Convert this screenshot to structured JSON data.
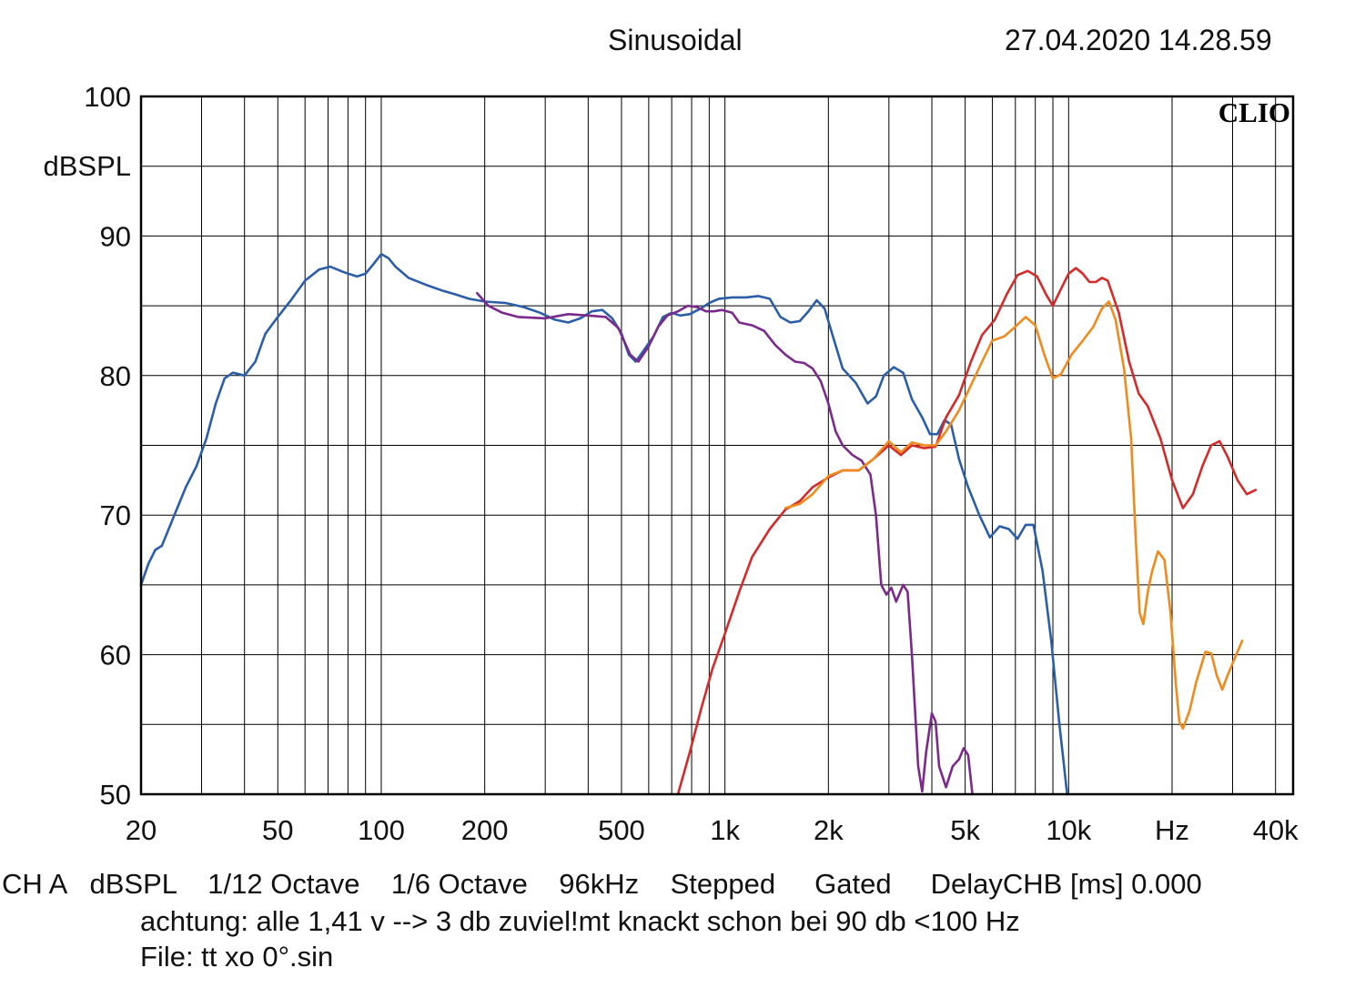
{
  "header": {
    "title": "Sinusoidal",
    "timestamp": "27.04.2020 14.28.59"
  },
  "footer": {
    "settings": "CH A   dBSPL    1/12 Octave    1/6 Octave    96kHz    Stepped     Gated     DelayCHB [ms] 0.000",
    "note": "achtung: alle 1,41 v --> 3 db zuviel!mt knackt schon bei 90 db <100 Hz",
    "file": "File: tt xo 0°.sin"
  },
  "chart_data": {
    "type": "line",
    "title": "Sinusoidal",
    "logo": "CLIO",
    "ylabel": "dBSPL",
    "xlabel": "Hz",
    "x_scale": "log",
    "xlim": [
      20,
      45000
    ],
    "ylim": [
      50,
      100
    ],
    "grid": true,
    "y_ticks": [
      {
        "value": 100,
        "label": "100"
      },
      {
        "value": 90,
        "label": "90"
      },
      {
        "value": 80,
        "label": "80"
      },
      {
        "value": 70,
        "label": "70"
      },
      {
        "value": 60,
        "label": "60"
      },
      {
        "value": 50,
        "label": "50"
      }
    ],
    "x_ticks": [
      {
        "value": 20,
        "label": "20"
      },
      {
        "value": 50,
        "label": "50"
      },
      {
        "value": 100,
        "label": "100"
      },
      {
        "value": 200,
        "label": "200"
      },
      {
        "value": 500,
        "label": "500"
      },
      {
        "value": 1000,
        "label": "1k"
      },
      {
        "value": 2000,
        "label": "2k"
      },
      {
        "value": 5000,
        "label": "5k"
      },
      {
        "value": 10000,
        "label": "10k"
      },
      {
        "value": 40000,
        "label": "40k"
      }
    ],
    "series": [
      {
        "color": "#2b5ea8",
        "points": [
          [
            20,
            65
          ],
          [
            21,
            66.5
          ],
          [
            22,
            67.5
          ],
          [
            23,
            67.8
          ],
          [
            25,
            70
          ],
          [
            27,
            72
          ],
          [
            29,
            73.5
          ],
          [
            31,
            75.5
          ],
          [
            33,
            78
          ],
          [
            35,
            79.8
          ],
          [
            37,
            80.2
          ],
          [
            40,
            80
          ],
          [
            43,
            81
          ],
          [
            46,
            83
          ],
          [
            50,
            84.2
          ],
          [
            55,
            85.5
          ],
          [
            60,
            86.8
          ],
          [
            66,
            87.6
          ],
          [
            71,
            87.8
          ],
          [
            78,
            87.4
          ],
          [
            85,
            87.1
          ],
          [
            90,
            87.3
          ],
          [
            95,
            88
          ],
          [
            100,
            88.7
          ],
          [
            105,
            88.4
          ],
          [
            110,
            87.8
          ],
          [
            120,
            87
          ],
          [
            135,
            86.5
          ],
          [
            150,
            86.1
          ],
          [
            165,
            85.8
          ],
          [
            180,
            85.5
          ],
          [
            200,
            85.3
          ],
          [
            230,
            85.2
          ],
          [
            260,
            84.9
          ],
          [
            290,
            84.5
          ],
          [
            320,
            84
          ],
          [
            350,
            83.8
          ],
          [
            380,
            84.1
          ],
          [
            410,
            84.6
          ],
          [
            440,
            84.7
          ],
          [
            470,
            84.1
          ],
          [
            500,
            83
          ],
          [
            525,
            81.5
          ],
          [
            550,
            81
          ],
          [
            580,
            81.8
          ],
          [
            620,
            82.8
          ],
          [
            660,
            84.2
          ],
          [
            700,
            84.5
          ],
          [
            740,
            84.3
          ],
          [
            790,
            84.4
          ],
          [
            850,
            84.8
          ],
          [
            900,
            85.2
          ],
          [
            960,
            85.5
          ],
          [
            1050,
            85.6
          ],
          [
            1150,
            85.6
          ],
          [
            1250,
            85.7
          ],
          [
            1350,
            85.5
          ],
          [
            1450,
            84.2
          ],
          [
            1550,
            83.8
          ],
          [
            1650,
            83.9
          ],
          [
            1750,
            84.6
          ],
          [
            1850,
            85.4
          ],
          [
            1950,
            84.8
          ],
          [
            2050,
            83
          ],
          [
            2200,
            80.5
          ],
          [
            2400,
            79.5
          ],
          [
            2600,
            78
          ],
          [
            2750,
            78.5
          ],
          [
            2900,
            80
          ],
          [
            3100,
            80.6
          ],
          [
            3300,
            80.2
          ],
          [
            3500,
            78.3
          ],
          [
            3750,
            77
          ],
          [
            3950,
            75.8
          ],
          [
            4150,
            75.8
          ],
          [
            4350,
            76.8
          ],
          [
            4550,
            76.5
          ],
          [
            4800,
            74
          ],
          [
            5100,
            72
          ],
          [
            5500,
            70
          ],
          [
            5900,
            68.4
          ],
          [
            6300,
            69.2
          ],
          [
            6700,
            69
          ],
          [
            7100,
            68.3
          ],
          [
            7500,
            69.3
          ],
          [
            7900,
            69.3
          ],
          [
            8400,
            66
          ],
          [
            8900,
            61
          ],
          [
            9400,
            55
          ],
          [
            9900,
            50
          ]
        ]
      },
      {
        "color": "#7b2a8c",
        "points": [
          [
            190,
            85.9
          ],
          [
            205,
            85
          ],
          [
            225,
            84.5
          ],
          [
            250,
            84.2
          ],
          [
            300,
            84.1
          ],
          [
            350,
            84.4
          ],
          [
            400,
            84.3
          ],
          [
            450,
            84.2
          ],
          [
            490,
            83.4
          ],
          [
            530,
            81.5
          ],
          [
            560,
            81
          ],
          [
            600,
            82.1
          ],
          [
            640,
            83.5
          ],
          [
            680,
            84.3
          ],
          [
            730,
            84.6
          ],
          [
            780,
            85
          ],
          [
            830,
            84.9
          ],
          [
            880,
            84.6
          ],
          [
            930,
            84.6
          ],
          [
            980,
            84.7
          ],
          [
            1050,
            84.5
          ],
          [
            1100,
            83.8
          ],
          [
            1200,
            83.6
          ],
          [
            1300,
            83.2
          ],
          [
            1400,
            82.2
          ],
          [
            1500,
            81.5
          ],
          [
            1600,
            81
          ],
          [
            1700,
            80.9
          ],
          [
            1800,
            80.5
          ],
          [
            1900,
            79.6
          ],
          [
            2000,
            78
          ],
          [
            2100,
            76
          ],
          [
            2200,
            75
          ],
          [
            2350,
            74.3
          ],
          [
            2500,
            73.9
          ],
          [
            2650,
            72.9
          ],
          [
            2750,
            70
          ],
          [
            2850,
            65
          ],
          [
            2950,
            64.3
          ],
          [
            3050,
            64.8
          ],
          [
            3150,
            63.8
          ],
          [
            3300,
            65
          ],
          [
            3400,
            64.5
          ],
          [
            3500,
            60
          ],
          [
            3650,
            52
          ],
          [
            3750,
            50.2
          ],
          [
            3850,
            53
          ],
          [
            4000,
            55.8
          ],
          [
            4100,
            55.2
          ],
          [
            4200,
            52
          ],
          [
            4400,
            50.5
          ],
          [
            4600,
            52
          ],
          [
            4800,
            52.5
          ],
          [
            4950,
            53.3
          ],
          [
            5100,
            52.8
          ],
          [
            5250,
            50
          ]
        ]
      },
      {
        "color": "#d42a2a",
        "points": [
          [
            730,
            50
          ],
          [
            790,
            53
          ],
          [
            850,
            56
          ],
          [
            920,
            59
          ],
          [
            1000,
            61.5
          ],
          [
            1100,
            64.5
          ],
          [
            1200,
            67
          ],
          [
            1350,
            69
          ],
          [
            1500,
            70.4
          ],
          [
            1650,
            71
          ],
          [
            1800,
            72
          ],
          [
            2000,
            72.7
          ],
          [
            2200,
            73.2
          ],
          [
            2450,
            73.2
          ],
          [
            2700,
            74
          ],
          [
            3000,
            75
          ],
          [
            3250,
            74.3
          ],
          [
            3500,
            75
          ],
          [
            3800,
            74.8
          ],
          [
            4100,
            74.9
          ],
          [
            4400,
            77
          ],
          [
            4800,
            78.6
          ],
          [
            5200,
            81
          ],
          [
            5600,
            82.9
          ],
          [
            6100,
            84
          ],
          [
            6600,
            85.8
          ],
          [
            7100,
            87.2
          ],
          [
            7600,
            87.5
          ],
          [
            8100,
            87.1
          ],
          [
            8600,
            85.8
          ],
          [
            9000,
            85
          ],
          [
            9500,
            86.2
          ],
          [
            10000,
            87.3
          ],
          [
            10500,
            87.7
          ],
          [
            11000,
            87.3
          ],
          [
            11500,
            86.7
          ],
          [
            12000,
            86.7
          ],
          [
            12500,
            87
          ],
          [
            13000,
            86.8
          ],
          [
            14000,
            84.5
          ],
          [
            15000,
            81
          ],
          [
            16000,
            78.7
          ],
          [
            17000,
            77.8
          ],
          [
            18500,
            75.5
          ],
          [
            20000,
            72.5
          ],
          [
            21500,
            70.5
          ],
          [
            23000,
            71.5
          ],
          [
            24500,
            73.5
          ],
          [
            26000,
            75
          ],
          [
            27500,
            75.3
          ],
          [
            29000,
            74.2
          ],
          [
            31000,
            72.5
          ],
          [
            33000,
            71.5
          ],
          [
            35000,
            71.8
          ]
        ]
      },
      {
        "color": "#f08a1c",
        "points": [
          [
            1500,
            70.5
          ],
          [
            1650,
            70.8
          ],
          [
            1800,
            71.5
          ],
          [
            2000,
            72.8
          ],
          [
            2200,
            73.2
          ],
          [
            2450,
            73.2
          ],
          [
            2700,
            74
          ],
          [
            3000,
            75.3
          ],
          [
            3250,
            74.5
          ],
          [
            3500,
            75.2
          ],
          [
            3800,
            75
          ],
          [
            4100,
            75
          ],
          [
            4400,
            76
          ],
          [
            4800,
            77.5
          ],
          [
            5200,
            79.3
          ],
          [
            5600,
            81
          ],
          [
            6000,
            82.5
          ],
          [
            6500,
            82.8
          ],
          [
            7000,
            83.5
          ],
          [
            7500,
            84.2
          ],
          [
            8000,
            83.6
          ],
          [
            8500,
            81.5
          ],
          [
            9000,
            79.8
          ],
          [
            9500,
            80.1
          ],
          [
            10200,
            81.5
          ],
          [
            11000,
            82.5
          ],
          [
            11800,
            83.5
          ],
          [
            12500,
            84.8
          ],
          [
            13100,
            85.3
          ],
          [
            13700,
            84
          ],
          [
            14500,
            80.5
          ],
          [
            15200,
            75.5
          ],
          [
            15700,
            68
          ],
          [
            16100,
            63
          ],
          [
            16500,
            62.2
          ],
          [
            17000,
            64.5
          ],
          [
            17500,
            66
          ],
          [
            18200,
            67.4
          ],
          [
            19000,
            66.8
          ],
          [
            19800,
            63
          ],
          [
            20500,
            58
          ],
          [
            21000,
            55.2
          ],
          [
            21500,
            54.7
          ],
          [
            22500,
            56
          ],
          [
            23500,
            58
          ],
          [
            25000,
            60.2
          ],
          [
            26000,
            60.1
          ],
          [
            27000,
            58.5
          ],
          [
            28000,
            57.5
          ],
          [
            29000,
            58.5
          ],
          [
            30500,
            59.8
          ],
          [
            32000,
            61
          ]
        ]
      }
    ]
  }
}
